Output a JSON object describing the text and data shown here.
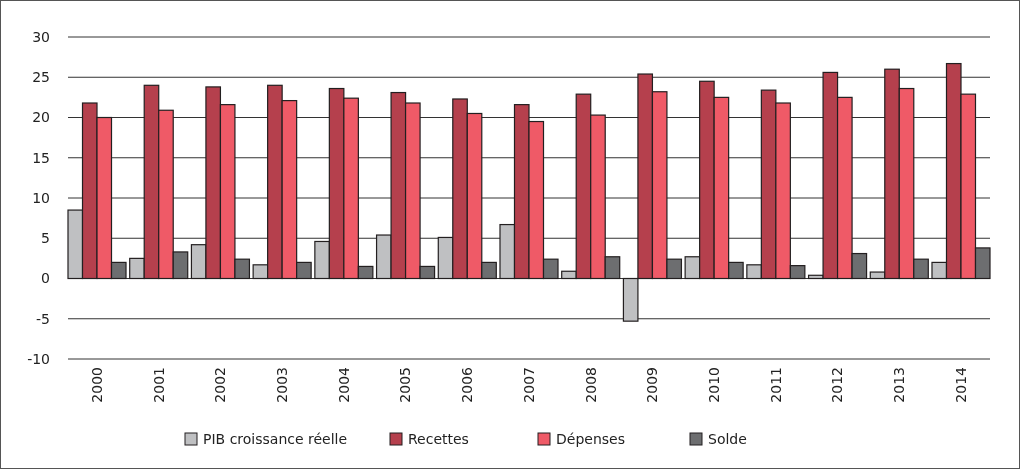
{
  "chart_data": {
    "type": "bar",
    "categories": [
      "2000",
      "2001",
      "2002",
      "2003",
      "2004",
      "2005",
      "2006",
      "2007",
      "2008",
      "2009",
      "2010",
      "2011",
      "2012",
      "2013",
      "2014"
    ],
    "series": [
      {
        "name": "PIB croissance réelle",
        "color": "#bfc0c2",
        "values": [
          8.5,
          2.5,
          4.2,
          1.7,
          4.6,
          5.4,
          5.1,
          6.7,
          0.9,
          -5.3,
          2.7,
          1.7,
          0.4,
          0.8,
          2.0
        ]
      },
      {
        "name": "Recettes",
        "color": "#b5404d",
        "values": [
          21.8,
          24.0,
          23.8,
          24.0,
          23.6,
          23.1,
          22.3,
          21.6,
          22.9,
          25.4,
          24.5,
          23.4,
          25.6,
          26.0,
          26.7
        ]
      },
      {
        "name": "Dépenses",
        "color": "#ef5a67",
        "values": [
          20.0,
          20.9,
          21.6,
          22.1,
          22.4,
          21.8,
          20.5,
          19.5,
          20.3,
          23.2,
          22.5,
          21.8,
          22.5,
          23.6,
          22.9
        ]
      },
      {
        "name": "Solde",
        "color": "#6d6e70",
        "values": [
          2.0,
          3.3,
          2.4,
          2.0,
          1.5,
          1.5,
          2.0,
          2.4,
          2.7,
          2.4,
          2.0,
          1.6,
          3.1,
          2.4,
          3.8
        ]
      }
    ],
    "ylim": [
      -10,
      30
    ],
    "yticks": [
      -10,
      -5,
      0,
      5,
      10,
      15,
      20,
      25,
      30
    ],
    "grid": "y",
    "legend": "bottom"
  }
}
